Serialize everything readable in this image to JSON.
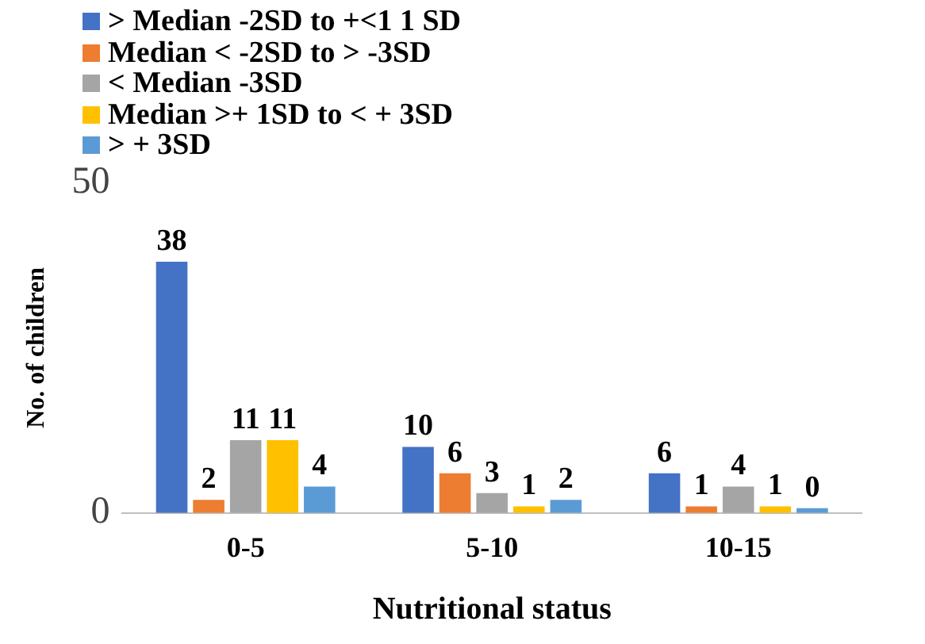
{
  "chart_data": {
    "type": "bar",
    "xlabel": "Nutritional status",
    "ylabel": "No. of children",
    "categories": [
      "0-5",
      "5-10",
      "10-15"
    ],
    "series": [
      {
        "name": "> Median -2SD to +<1 1 SD",
        "color": "#4472c4",
        "values": [
          38,
          10,
          6
        ]
      },
      {
        "name": "Median < -2SD to > -3SD",
        "color": "#ed7d31",
        "values": [
          2,
          6,
          1
        ]
      },
      {
        "name": "< Median -3SD",
        "color": "#a5a5a5",
        "values": [
          11,
          3,
          4
        ]
      },
      {
        "name": "Median >+ 1SD to < + 3SD",
        "color": "#ffc000",
        "values": [
          11,
          1,
          1
        ]
      },
      {
        "name": "> + 3SD",
        "color": "#5b9bd5",
        "values": [
          4,
          2,
          0
        ]
      }
    ],
    "ylim": [
      0,
      50
    ],
    "yticks": [
      0,
      50
    ],
    "grid": false,
    "legend": "top",
    "data_labels": true
  }
}
